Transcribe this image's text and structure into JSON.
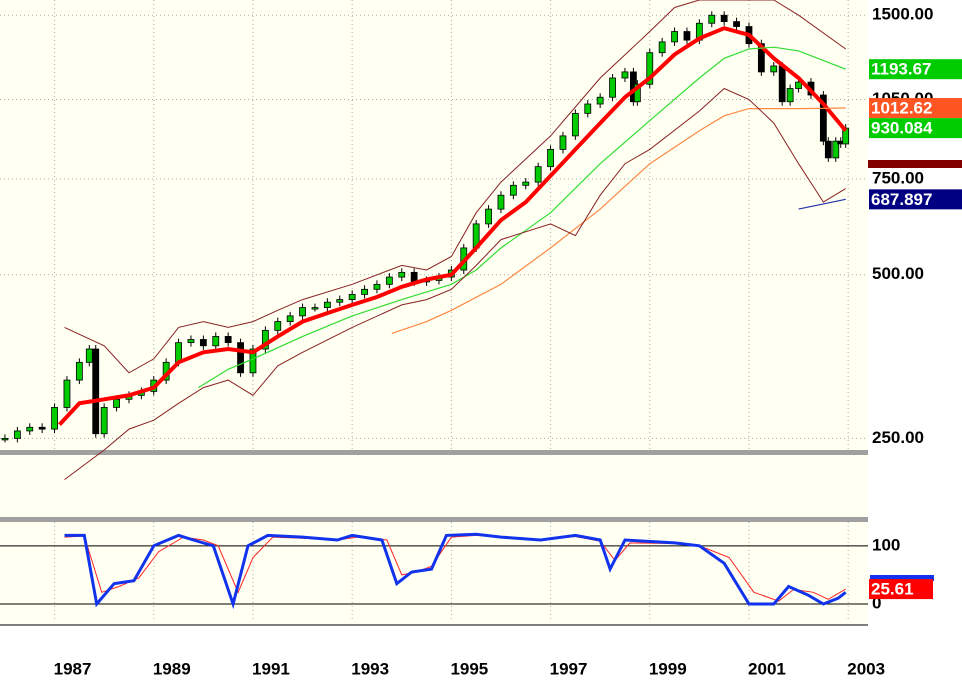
{
  "chart_data": [
    {
      "type": "line",
      "log_scale": true,
      "grid": true,
      "xlim": [
        1985.9,
        2003.4
      ],
      "ylim": [
        238,
        1600
      ],
      "yticks": [
        {
          "value": 250,
          "label": "250.00"
        },
        {
          "value": 500,
          "label": "500.00"
        },
        {
          "value": 750,
          "label": "750.00"
        },
        {
          "value": 1050,
          "label": "1050.00"
        },
        {
          "value": 1500,
          "label": "1500.00"
        }
      ],
      "series": [
        {
          "style": "candles",
          "color": "#00cc00",
          "down_color": "#000000",
          "x": [
            1986.0,
            1986.25,
            1986.5,
            1986.75,
            1987.0,
            1987.25,
            1987.5,
            1987.7,
            1987.83,
            1988.0,
            1988.25,
            1988.5,
            1988.75,
            1989.0,
            1989.25,
            1989.5,
            1989.75,
            1990.0,
            1990.25,
            1990.5,
            1990.75,
            1991.0,
            1991.25,
            1991.5,
            1991.75,
            1992.0,
            1992.25,
            1992.5,
            1992.75,
            1993.0,
            1993.25,
            1993.5,
            1993.75,
            1994.0,
            1994.25,
            1994.5,
            1994.75,
            1995.0,
            1995.25,
            1995.5,
            1995.75,
            1996.0,
            1996.25,
            1996.5,
            1996.75,
            1997.0,
            1997.25,
            1997.5,
            1997.75,
            1998.0,
            1998.25,
            1998.5,
            1998.67,
            1998.75,
            1999.0,
            1999.25,
            1999.5,
            1999.75,
            2000.0,
            2000.25,
            2000.5,
            2000.75,
            2001.0,
            2001.25,
            2001.5,
            2001.67,
            2001.83,
            2002.0,
            2002.25,
            2002.5,
            2002.6,
            2002.75,
            2002.85,
            2002.95
          ],
          "values": [
            250,
            258,
            262,
            260,
            285,
            320,
            345,
            365,
            255,
            285,
            295,
            300,
            305,
            320,
            345,
            375,
            380,
            370,
            385,
            375,
            330,
            365,
            395,
            410,
            420,
            435,
            435,
            445,
            450,
            460,
            470,
            480,
            495,
            505,
            485,
            488,
            495,
            510,
            560,
            620,
            660,
            700,
            730,
            740,
            790,
            850,
            900,
            990,
            1030,
            1060,
            1150,
            1180,
            1040,
            1120,
            1280,
            1340,
            1400,
            1350,
            1450,
            1500,
            1460,
            1430,
            1330,
            1180,
            1210,
            1040,
            1100,
            1130,
            1070,
            880,
            820,
            880,
            870,
            930.084
          ]
        },
        {
          "color": "#ff0000",
          "width": 4,
          "x": [
            1987.1,
            1987.5,
            1988.0,
            1988.5,
            1989.0,
            1989.5,
            1990.0,
            1990.5,
            1991.0,
            1991.5,
            1992.0,
            1992.5,
            1993.0,
            1993.5,
            1994.0,
            1994.5,
            1995.0,
            1995.5,
            1996.0,
            1996.5,
            1997.0,
            1997.5,
            1998.0,
            1998.5,
            1999.0,
            1999.5,
            2000.0,
            2000.5,
            2001.0,
            2001.5,
            2002.0,
            2002.5,
            2002.95
          ],
          "values": [
            265,
            290,
            295,
            300,
            310,
            345,
            360,
            365,
            360,
            385,
            410,
            425,
            440,
            455,
            475,
            490,
            500,
            560,
            630,
            680,
            760,
            850,
            950,
            1060,
            1150,
            1270,
            1360,
            1420,
            1380,
            1250,
            1150,
            1030,
            920
          ]
        },
        {
          "color": "#33dd33",
          "width": 1.2,
          "x": [
            1989.9,
            1990.5,
            1991.0,
            1992.0,
            1993.0,
            1994.0,
            1995.0,
            1995.5,
            1996.0,
            1997.0,
            1998.0,
            1999.0,
            2000.0,
            2000.5,
            2001.0,
            2001.5,
            2002.0,
            2002.95
          ],
          "values": [
            310,
            335,
            350,
            385,
            420,
            450,
            480,
            510,
            560,
            650,
            800,
            960,
            1150,
            1250,
            1300,
            1310,
            1290,
            1193.67
          ]
        },
        {
          "color": "#ff8844",
          "width": 1.2,
          "x": [
            1993.8,
            1994.5,
            1995.0,
            1996.0,
            1997.0,
            1998.0,
            1999.0,
            2000.0,
            2000.5,
            2001.0,
            2002.0,
            2002.95
          ],
          "values": [
            390,
            410,
            430,
            480,
            560,
            660,
            800,
            920,
            980,
            1010,
            1010,
            1012.62
          ]
        },
        {
          "color": "#882222",
          "width": 1,
          "x": [
            1987.2,
            1988.0,
            1988.5,
            1989.0,
            1989.5,
            1990.0,
            1990.5,
            1991.0,
            1991.5,
            1992.0,
            1993.0,
            1994.0,
            1994.5,
            1995.0,
            1995.5,
            1996.0,
            1997.0,
            1998.0,
            1999.0,
            1999.5,
            2000.0,
            2000.5,
            2001.0,
            2001.5,
            2002.0,
            2002.95
          ],
          "values": [
            400,
            370,
            330,
            350,
            400,
            410,
            400,
            410,
            430,
            450,
            480,
            520,
            510,
            540,
            650,
            740,
            900,
            1150,
            1400,
            1550,
            1600,
            1600,
            1600,
            1600,
            1500,
            1300
          ]
        },
        {
          "color": "#882222",
          "width": 1,
          "x": [
            1987.2,
            1988.0,
            1988.5,
            1989.0,
            1989.5,
            1990.0,
            1990.5,
            1991.0,
            1991.5,
            1992.0,
            1993.0,
            1994.0,
            1994.5,
            1995.0,
            1995.5,
            1996.0,
            1997.0,
            1997.5,
            1998.0,
            1998.5,
            1999.0,
            2000.0,
            2000.5,
            2001.0,
            2001.5,
            2002.0,
            2002.5,
            2002.95
          ],
          "values": [
            210,
            238,
            260,
            270,
            290,
            310,
            320,
            300,
            340,
            360,
            400,
            440,
            450,
            470,
            520,
            580,
            620,
            590,
            700,
            800,
            850,
            1000,
            1100,
            1050,
            950,
            800,
            680,
            720
          ]
        },
        {
          "color": "#2233aa",
          "width": 1.2,
          "x": [
            2002.0,
            2002.95
          ],
          "values": [
            660,
            687.897
          ]
        }
      ],
      "flags": [
        {
          "value": 1193.67,
          "color": "#00cc00"
        },
        {
          "value": 1012.62,
          "color": "#ff5522"
        },
        {
          "value": 930.084,
          "color": "#00cc00"
        },
        {
          "value": 687.897,
          "color": "#000080"
        }
      ]
    },
    {
      "type": "line",
      "log_scale": false,
      "grid": true,
      "xlim": [
        1985.9,
        2003.4
      ],
      "ylim": [
        -31,
        141
      ],
      "xticks": [
        1987,
        1989,
        1991,
        1993,
        1995,
        1997,
        1999,
        2001,
        2003
      ],
      "yticks": [
        100,
        0
      ],
      "series": [
        {
          "color": "#ff2222",
          "width": 1,
          "x": [
            1987.2,
            1987.6,
            1987.95,
            1988.3,
            1988.7,
            1989.1,
            1989.6,
            1990.0,
            1990.3,
            1990.7,
            1991.0,
            1991.4,
            1992.0,
            1992.7,
            1993.1,
            1993.7,
            1994.0,
            1994.3,
            1994.6,
            1995.0,
            1995.5,
            1996.0,
            1996.8,
            1997.5,
            1998.0,
            1998.3,
            1998.6,
            1999.5,
            2000.0,
            2000.6,
            2001.1,
            2001.6,
            2001.9,
            2002.3,
            2002.6,
            2002.95
          ],
          "values": [
            115,
            117,
            20,
            30,
            45,
            90,
            115,
            110,
            100,
            20,
            80,
            115,
            113,
            110,
            115,
            110,
            50,
            55,
            65,
            115,
            118,
            115,
            110,
            116,
            108,
            75,
            105,
            104,
            100,
            80,
            20,
            5,
            25,
            20,
            8,
            25.61
          ]
        },
        {
          "color": "#1133ee",
          "width": 3,
          "x": [
            1987.2,
            1987.6,
            1987.85,
            1988.2,
            1988.6,
            1989.0,
            1989.5,
            1989.8,
            1990.2,
            1990.6,
            1990.9,
            1991.3,
            1992.0,
            1992.7,
            1993.0,
            1993.6,
            1993.9,
            1994.2,
            1994.6,
            1994.9,
            1995.5,
            1996.0,
            1996.8,
            1997.5,
            1998.0,
            1998.2,
            1998.5,
            1999.5,
            2000.0,
            2000.5,
            2001.0,
            2001.5,
            2001.8,
            2002.2,
            2002.5,
            2002.8,
            2002.95
          ],
          "values": [
            118,
            118,
            0,
            35,
            40,
            100,
            118,
            110,
            100,
            0,
            100,
            118,
            115,
            110,
            118,
            110,
            35,
            55,
            60,
            118,
            120,
            115,
            110,
            118,
            110,
            60,
            110,
            105,
            100,
            70,
            0,
            0,
            30,
            15,
            0,
            10,
            20
          ]
        }
      ],
      "flags": [
        {
          "value": 25.61,
          "color": "#ff0000"
        }
      ]
    }
  ]
}
